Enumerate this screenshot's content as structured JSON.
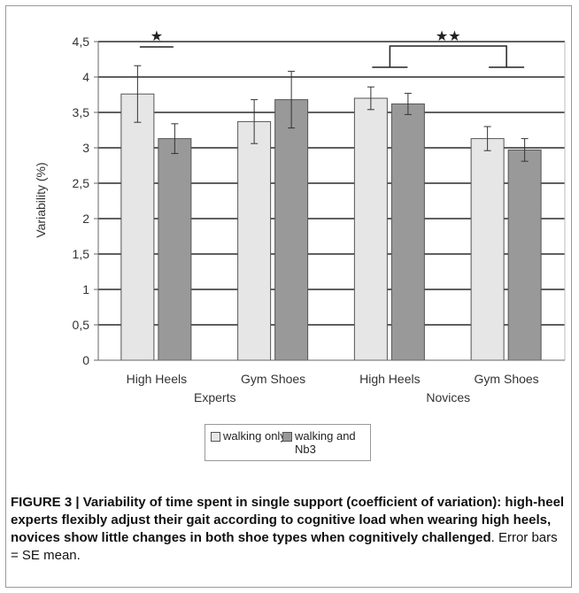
{
  "chart_data": {
    "type": "bar",
    "ylabel": "Variability (%)",
    "ylim": [
      0,
      4.5
    ],
    "y_ticks": [
      "0",
      "0,5",
      "1",
      "1,5",
      "2",
      "2,5",
      "3",
      "3,5",
      "4",
      "4,5"
    ],
    "categories": [
      "High Heels",
      "Gym Shoes",
      "High Heels",
      "Gym Shoes"
    ],
    "groups": [
      {
        "label": "Experts",
        "categories": [
          "High Heels",
          "Gym Shoes"
        ]
      },
      {
        "label": "Novices",
        "categories": [
          "High Heels",
          "Gym Shoes"
        ]
      }
    ],
    "series": [
      {
        "name": "walking only",
        "color": "#e6e6e6",
        "values": [
          3.76,
          3.37,
          3.7,
          3.13
        ],
        "errors": [
          0.4,
          0.31,
          0.16,
          0.17
        ]
      },
      {
        "name": "walking and Nb3",
        "color": "#999999",
        "values": [
          3.13,
          3.68,
          3.62,
          2.97
        ],
        "errors": [
          0.21,
          0.4,
          0.15,
          0.16
        ]
      }
    ],
    "annotations": [
      {
        "text": "★",
        "applies_to": "Experts High Heels"
      },
      {
        "text": "★★",
        "applies_to": "Novices High Heels vs Gym Shoes"
      }
    ],
    "grid": true,
    "legend_position": "bottom"
  },
  "caption": {
    "bold": "FIGURE 3 | Variability of time spent in single support (coefficient of variation): high-heel experts flexibly adjust their gait according to cognitive load when wearing high heels, novices show little changes in both shoe types when cognitively challenged",
    "normal": ". Error bars = SE mean."
  }
}
